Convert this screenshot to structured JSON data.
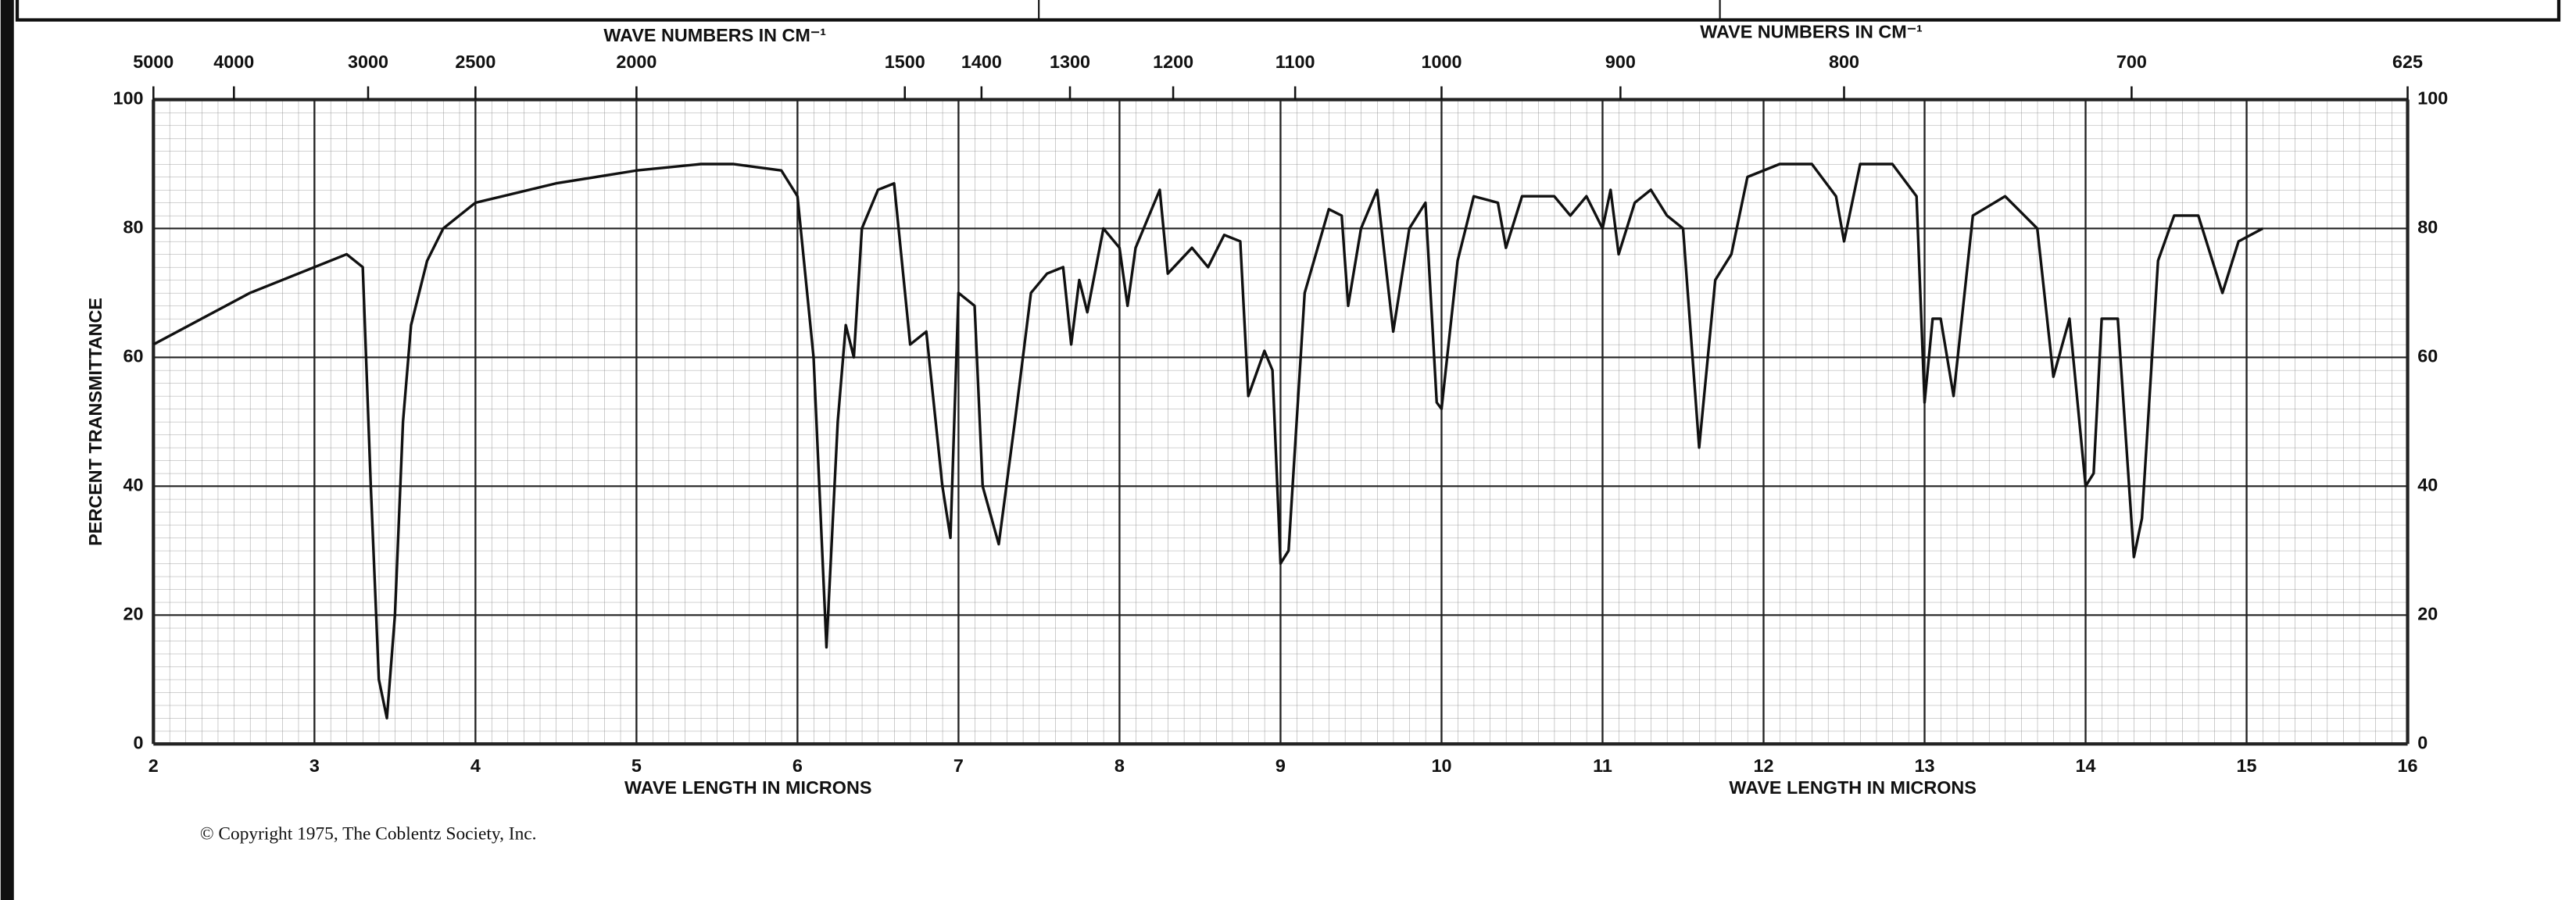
{
  "chart_data": {
    "type": "line",
    "xlabel": "WAVE LENGTH IN MICRONS",
    "x2label": "WAVE NUMBERS IN CM⁻¹",
    "ylabel": "PERCENT TRANSMITTANCE",
    "copyright": "© Copyright 1975, The Coblentz Society, Inc.",
    "color": "#111111",
    "grid": true,
    "xlim": [
      2,
      16
    ],
    "xticks": [
      2,
      3,
      4,
      5,
      6,
      7,
      8,
      9,
      10,
      11,
      12,
      13,
      14,
      15,
      16
    ],
    "x2ticks": [
      5000,
      4000,
      3000,
      2500,
      2000,
      1500,
      1400,
      1300,
      1200,
      1100,
      1000,
      900,
      800,
      700,
      625
    ],
    "ylim": [
      0,
      100
    ],
    "yticks": [
      0,
      20,
      40,
      60,
      80,
      100
    ],
    "x": [
      2.0,
      2.3,
      2.6,
      2.9,
      3.2,
      3.3,
      3.35,
      3.4,
      3.45,
      3.5,
      3.55,
      3.6,
      3.7,
      3.8,
      4.0,
      4.5,
      5.0,
      5.4,
      5.6,
      5.9,
      6.0,
      6.1,
      6.18,
      6.25,
      6.3,
      6.35,
      6.4,
      6.5,
      6.6,
      6.7,
      6.8,
      6.9,
      6.95,
      7.0,
      7.1,
      7.15,
      7.25,
      7.35,
      7.45,
      7.55,
      7.65,
      7.7,
      7.75,
      7.8,
      7.9,
      8.0,
      8.05,
      8.1,
      8.25,
      8.3,
      8.45,
      8.55,
      8.65,
      8.75,
      8.8,
      8.9,
      8.95,
      9.0,
      9.05,
      9.15,
      9.3,
      9.38,
      9.42,
      9.5,
      9.6,
      9.7,
      9.8,
      9.9,
      9.97,
      10.0,
      10.1,
      10.2,
      10.35,
      10.4,
      10.5,
      10.7,
      10.8,
      10.9,
      11.0,
      11.05,
      11.1,
      11.2,
      11.3,
      11.4,
      11.5,
      11.6,
      11.7,
      11.8,
      11.9,
      12.1,
      12.3,
      12.45,
      12.5,
      12.6,
      12.8,
      12.95,
      13.0,
      13.05,
      13.1,
      13.18,
      13.3,
      13.5,
      13.7,
      13.8,
      13.9,
      14.0,
      14.05,
      14.1,
      14.2,
      14.3,
      14.35,
      14.45,
      14.55,
      14.7,
      14.85,
      14.95,
      15.1
    ],
    "values": [
      62,
      66,
      70,
      73,
      76,
      74,
      40,
      10,
      4,
      20,
      50,
      65,
      75,
      80,
      84,
      87,
      89,
      90,
      90,
      89,
      85,
      60,
      15,
      50,
      65,
      60,
      80,
      86,
      87,
      62,
      64,
      40,
      32,
      70,
      68,
      40,
      31,
      50,
      70,
      73,
      74,
      62,
      72,
      67,
      80,
      77,
      68,
      77,
      86,
      73,
      77,
      74,
      79,
      78,
      54,
      61,
      58,
      28,
      30,
      70,
      83,
      82,
      68,
      80,
      86,
      64,
      80,
      84,
      53,
      52,
      75,
      85,
      84,
      77,
      85,
      85,
      82,
      85,
      80,
      86,
      76,
      84,
      86,
      82,
      80,
      46,
      72,
      76,
      88,
      90,
      90,
      85,
      78,
      90,
      90,
      85,
      53,
      66,
      66,
      54,
      82,
      85,
      80,
      57,
      66,
      40,
      42,
      66,
      66,
      29,
      35,
      75,
      82,
      82,
      70,
      78,
      80
    ]
  }
}
